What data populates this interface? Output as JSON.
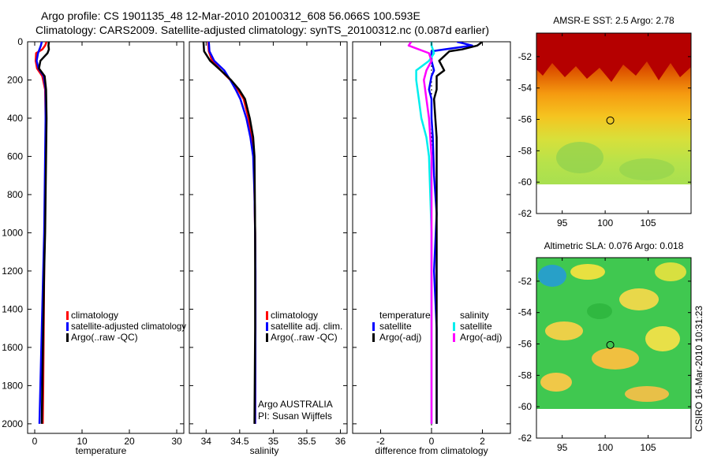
{
  "header": {
    "line1": "Argo profile: CS 1901135_48 12-Mar-2010 20100312_608 56.066S 100.593E",
    "line2": "Climatology: CARS2009. Satellite-adjusted climatology: synTS_20100312.nc (0.087d earlier)"
  },
  "colors": {
    "clim": "#ff0000",
    "sat": "#0000ff",
    "argo": "#000000",
    "sal_sat": "#00eeee",
    "sal_argo": "#ff00ff"
  },
  "credit": "CSIRO 16-Mar-2010 10:31:23",
  "chart_data": [
    {
      "id": "temperature",
      "type": "line",
      "xlabel": "temperature",
      "xlim": [
        -1.5,
        31.5
      ],
      "ylim": [
        0,
        2050
      ],
      "yinvert": true,
      "xticks": [
        0,
        10,
        20,
        30
      ],
      "xtick_labels": [
        "0",
        "10",
        "20",
        "30"
      ],
      "yticks": [
        0,
        200,
        400,
        600,
        800,
        1000,
        1200,
        1400,
        1600,
        1800,
        2000
      ],
      "ytick_labels": [
        "0",
        "200",
        "400",
        "600",
        "800",
        "1000",
        "1200",
        "1400",
        "1600",
        "1800",
        "2000"
      ],
      "legend": {
        "position": "lower-middle",
        "entries": [
          "climatology",
          "satellite-adjusted climatology",
          "Argo(..raw -QC)"
        ]
      },
      "series": [
        {
          "name": "climatology",
          "color": "#ff0000",
          "x": [
            2.5,
            2.2,
            1.6,
            0.3,
            0.2,
            0.5,
            1.6,
            2.2,
            2.3,
            2.3,
            2.2,
            2.1,
            2.0,
            1.9,
            1.8,
            1.7
          ],
          "y": [
            0,
            20,
            40,
            60,
            100,
            140,
            180,
            250,
            400,
            600,
            800,
            1000,
            1200,
            1500,
            1800,
            2000
          ]
        },
        {
          "name": "satellite-adjusted climatology",
          "color": "#0000ff",
          "x": [
            1.5,
            1.3,
            1.0,
            0.7,
            0.4,
            0.8,
            1.9,
            2.3,
            2.3,
            2.2,
            2.1,
            2.0,
            1.8,
            1.5,
            1.2,
            1.0
          ],
          "y": [
            0,
            20,
            40,
            60,
            100,
            140,
            180,
            250,
            400,
            600,
            800,
            1000,
            1200,
            1500,
            1800,
            2000
          ]
        },
        {
          "name": "Argo(..raw -QC)",
          "color": "#000000",
          "x": [
            3.0,
            2.9,
            3.0,
            2.7,
            1.2,
            0.9,
            1.5,
            2.1,
            2.4,
            2.5,
            2.4,
            2.3,
            2.2,
            2.0,
            1.8,
            1.6,
            1.5
          ],
          "y": [
            0,
            20,
            40,
            60,
            100,
            140,
            160,
            180,
            250,
            400,
            600,
            800,
            1000,
            1200,
            1500,
            1800,
            2000
          ]
        }
      ]
    },
    {
      "id": "salinity",
      "type": "line",
      "xlabel": "salinity",
      "xlim": [
        33.75,
        36.1
      ],
      "ylim": [
        0,
        2050
      ],
      "yinvert": true,
      "xticks": [
        34,
        34.5,
        35,
        35.5,
        36
      ],
      "xtick_labels": [
        "34",
        "34.5",
        "35",
        "35.5",
        "36"
      ],
      "legend": {
        "position": "lower-middle",
        "entries": [
          "climatology",
          "satellite adj. clim.",
          "Argo(..raw -QC)"
        ]
      },
      "annotation": [
        "Argo AUSTRALIA",
        "PI: Susan Wijffels"
      ],
      "series": [
        {
          "name": "climatology",
          "color": "#ff0000",
          "x": [
            34.03,
            34.04,
            34.09,
            34.22,
            34.36,
            34.47,
            34.56,
            34.63,
            34.68,
            34.71,
            34.72,
            34.73,
            34.735,
            34.735,
            34.73
          ],
          "y": [
            0,
            50,
            100,
            150,
            200,
            250,
            300,
            400,
            500,
            600,
            800,
            1000,
            1200,
            1500,
            2000
          ]
        },
        {
          "name": "satellite adj. clim.",
          "color": "#0000ff",
          "x": [
            34.04,
            34.05,
            34.12,
            34.27,
            34.36,
            34.44,
            34.51,
            34.6,
            34.66,
            34.7,
            34.72,
            34.73,
            34.735,
            34.735,
            34.73
          ],
          "y": [
            0,
            50,
            100,
            150,
            200,
            250,
            300,
            400,
            500,
            600,
            800,
            1000,
            1200,
            1500,
            2000
          ]
        },
        {
          "name": "Argo(..raw -QC)",
          "color": "#000000",
          "x": [
            33.96,
            33.97,
            34.06,
            34.22,
            34.37,
            34.49,
            34.58,
            34.65,
            34.7,
            34.72,
            34.725,
            34.73,
            34.73,
            34.73,
            34.72
          ],
          "y": [
            0,
            50,
            100,
            150,
            200,
            250,
            300,
            400,
            500,
            600,
            800,
            1000,
            1200,
            1500,
            2000
          ]
        }
      ]
    },
    {
      "id": "difference",
      "type": "line",
      "xlabel": "difference from climatology",
      "xlim": [
        -3.1,
        3.1
      ],
      "ylim": [
        0,
        2050
      ],
      "yinvert": true,
      "xticks": [
        -2,
        0,
        2
      ],
      "xtick_labels": [
        "-2",
        "0",
        "2"
      ],
      "zero_line": true,
      "legend": {
        "position": "lower-middle",
        "group_titles": [
          "temperature",
          "salinity"
        ],
        "entries": [
          "satellite",
          "satellite",
          "Argo(-adj)",
          "Argo(-adj)"
        ]
      },
      "series": [
        {
          "name": "temperature satellite",
          "color": "#0000ff",
          "x": [
            1.0,
            1.6,
            0.5,
            0.0,
            0.0,
            0.1,
            0.0,
            -0.1,
            0.0,
            0.0,
            0.05,
            0.1,
            0.2,
            0.1,
            0.2,
            0.2,
            0.2
          ],
          "y": [
            0,
            20,
            40,
            50,
            100,
            150,
            180,
            250,
            300,
            400,
            500,
            700,
            900,
            1200,
            1500,
            1800,
            2000
          ]
        },
        {
          "name": "temperature Argo(-adj)",
          "color": "#000000",
          "x": [
            2.0,
            1.8,
            1.2,
            0.7,
            0.3,
            0.5,
            0.2,
            0.2,
            0.1,
            0.15,
            0.2,
            0.2,
            0.2,
            0.2,
            0.2,
            0.2,
            0.2
          ],
          "y": [
            0,
            20,
            40,
            50,
            100,
            150,
            180,
            250,
            300,
            400,
            500,
            700,
            900,
            1200,
            1500,
            1800,
            2000
          ]
        },
        {
          "name": "salinity satellite",
          "color": "#00eeee",
          "x": [
            0.0,
            0.0,
            0.1,
            -0.1,
            -0.6,
            -0.6,
            -0.5,
            -0.4,
            -0.2,
            -0.1,
            -0.05,
            0.0,
            0.0,
            0.0,
            0.0,
            0.0
          ],
          "y": [
            0,
            20,
            60,
            100,
            150,
            200,
            300,
            400,
            500,
            600,
            800,
            1000,
            1200,
            1500,
            1800,
            2000
          ]
        },
        {
          "name": "salinity Argo(-adj)",
          "color": "#ff00ff",
          "x": [
            -0.8,
            -0.9,
            -0.1,
            0.0,
            -0.2,
            -0.3,
            -0.1,
            0.0,
            0.0,
            0.0,
            0.0,
            0.0,
            0.0
          ],
          "y": [
            0,
            20,
            60,
            100,
            150,
            200,
            400,
            600,
            800,
            1000,
            1200,
            1500,
            2000
          ]
        }
      ]
    },
    {
      "id": "sst_map",
      "type": "heatmap",
      "title": "AMSR-E SST: 2.5 Argo: 2.78",
      "xlim": [
        92,
        110
      ],
      "ylim": [
        -62,
        -50.5
      ],
      "xticks": [
        95,
        100,
        105
      ],
      "xtick_labels": [
        "95",
        "100",
        "105"
      ],
      "yticks": [
        -52,
        -54,
        -56,
        -58,
        -60,
        -62
      ],
      "ytick_labels": [
        "-52",
        "-54",
        "-56",
        "-58",
        "-60",
        "-62"
      ],
      "data_bottom_lat": -60,
      "argo_position": {
        "lon": 100.593,
        "lat": -56.066
      }
    },
    {
      "id": "sla_map",
      "type": "heatmap",
      "title": "Altimetric SLA: 0.076 Argo: 0.018",
      "xlim": [
        92,
        110
      ],
      "ylim": [
        -62,
        -50.5
      ],
      "xticks": [
        95,
        100,
        105
      ],
      "xtick_labels": [
        "95",
        "100",
        "105"
      ],
      "yticks": [
        -52,
        -54,
        -56,
        -58,
        -60,
        -62
      ],
      "ytick_labels": [
        "-52",
        "-54",
        "-56",
        "-58",
        "-60",
        "-62"
      ],
      "data_bottom_lat": -60,
      "argo_position": {
        "lon": 100.593,
        "lat": -56.066
      }
    }
  ]
}
